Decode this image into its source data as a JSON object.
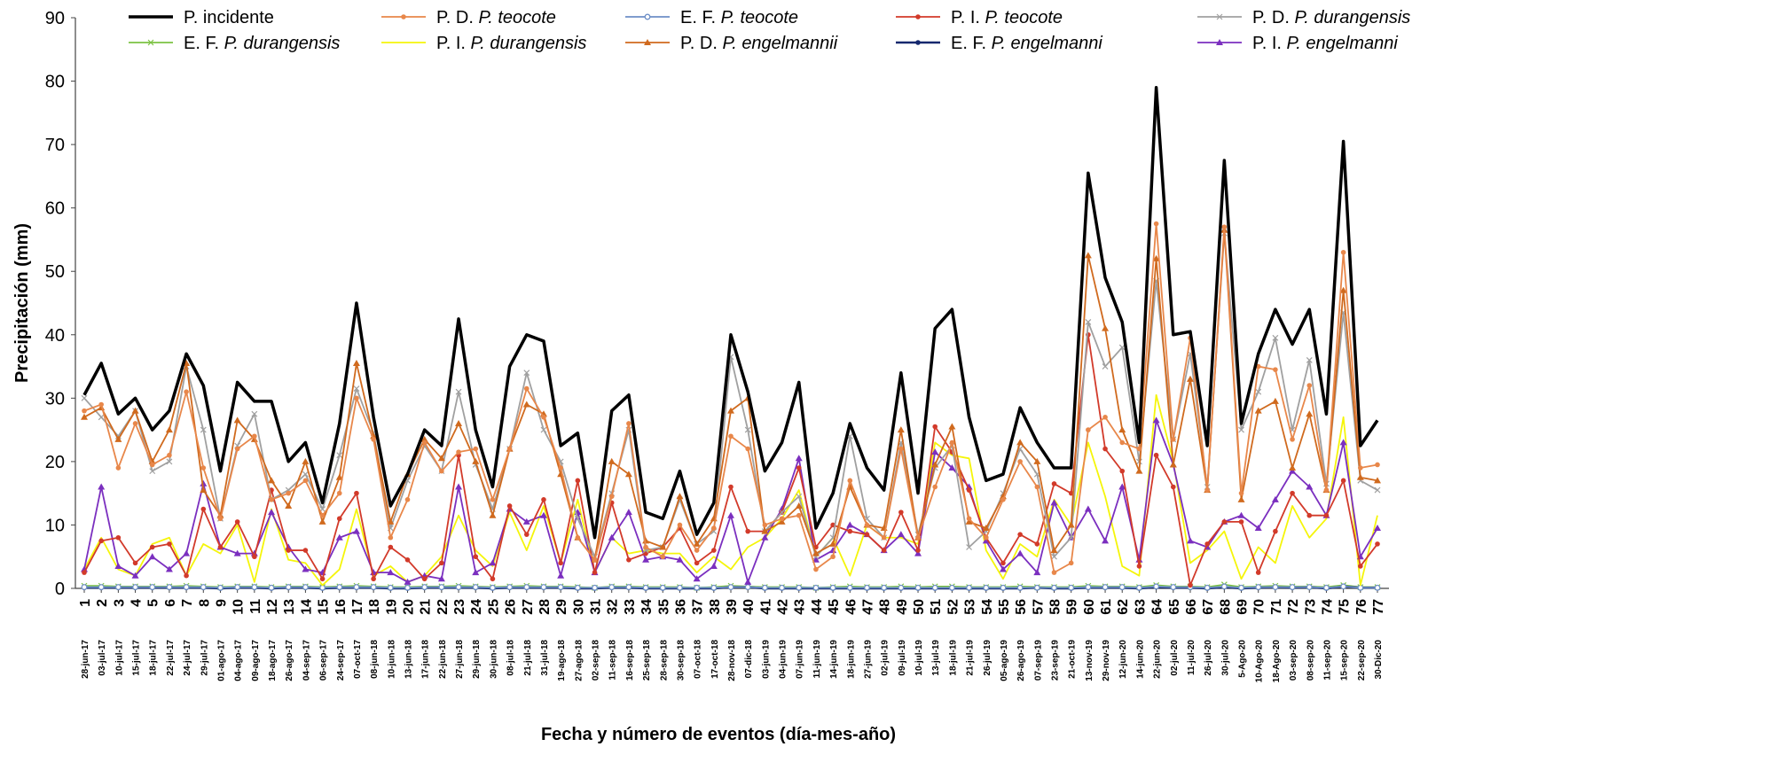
{
  "chart_data": {
    "type": "line",
    "xlabel": "Fecha y número de eventos (día-mes-año)",
    "ylabel": "Precipitación (mm)",
    "ylim": [
      0,
      90
    ],
    "yticks": [
      0,
      10,
      20,
      30,
      40,
      50,
      60,
      70,
      80,
      90
    ],
    "legend_position": "top",
    "grid": false,
    "events": [
      "1",
      "2",
      "3",
      "4",
      "5",
      "6",
      "7",
      "8",
      "9",
      "10",
      "11",
      "12",
      "13",
      "14",
      "15",
      "16",
      "17",
      "18",
      "19",
      "20",
      "21",
      "22",
      "23",
      "24",
      "25",
      "26",
      "27",
      "28",
      "29",
      "30",
      "31",
      "32",
      "33",
      "34",
      "35",
      "36",
      "37",
      "38",
      "39",
      "40",
      "41",
      "42",
      "43",
      "44",
      "45",
      "46",
      "47",
      "48",
      "49",
      "50",
      "51",
      "52",
      "53",
      "54",
      "55",
      "56",
      "57",
      "58",
      "59",
      "60",
      "61",
      "62",
      "63",
      "64",
      "65",
      "66",
      "67",
      "68",
      "69",
      "70",
      "71",
      "72",
      "73",
      "74",
      "75",
      "76",
      "77"
    ],
    "dates": [
      "28-jun-17",
      "03-jul-17",
      "10-jul-17",
      "15-jul-17",
      "18-jul-17",
      "22-jul-17",
      "24-jul-17",
      "29-jul-17",
      "01-ago-17",
      "04-ago-17",
      "09-ago-17",
      "18-ago-17",
      "26-ago-17",
      "04-sep-17",
      "06-sep-17",
      "24-sep-17",
      "07-oct-17",
      "08-jun-18",
      "10-jun-18",
      "13-jun-18",
      "17-jun-18",
      "22-jun-18",
      "27-jun-18",
      "29-jun-18",
      "30-jun-18",
      "08-jul-18",
      "21-jul-18",
      "31-jul-18",
      "19-ago-18",
      "27-ago-18",
      "02-sep-18",
      "11-sep-18",
      "16-sep-18",
      "25-sep-18",
      "28-sep-18",
      "30-sep-18",
      "07-oct-18",
      "17-oct-18",
      "28-nov-18",
      "07-dic-18",
      "03-jun-19",
      "04-jun-19",
      "07-jun-19",
      "11-jun-19",
      "14-jun-19",
      "18-jun-19",
      "27-jun-19",
      "02-jul-19",
      "09-jul-19",
      "10-jul-19",
      "13-jul-19",
      "18-jul-19",
      "21-jul-19",
      "26-jul-19",
      "05-ago-19",
      "26-ago-19",
      "07-sep-19",
      "23-sep-19",
      "21-oct-19",
      "13-nov-19",
      "29-nov-19",
      "12-jun-20",
      "14-jun-20",
      "22-jun-20",
      "02-jul-20",
      "11-jul-20",
      "26-jul-20",
      "30-jul-20",
      "5-Ago-20",
      "10-Ago-20",
      "18-Ago-20",
      "03-sep-20",
      "08-sep-20",
      "11-sep-20",
      "15-sep-20",
      "22-sep-20",
      "30-Dic-20"
    ],
    "series": [
      {
        "prefix": "P. incidente",
        "species": "",
        "color": "#000000",
        "marker": "none",
        "width": 3.5,
        "values": [
          30.5,
          35.5,
          27.5,
          30,
          25,
          28,
          37,
          32,
          18.5,
          32.5,
          29.5,
          29.5,
          20,
          23,
          13.5,
          26,
          45,
          27,
          13,
          18,
          25,
          22.5,
          42.5,
          25,
          16,
          35,
          40,
          39,
          22.5,
          24.5,
          8,
          28,
          30.5,
          12,
          11,
          18.5,
          8.5,
          13.5,
          40,
          31,
          18.5,
          23,
          32.5,
          9.5,
          15,
          26,
          19,
          15.5,
          34,
          15,
          41,
          44,
          27,
          17,
          18,
          28.5,
          23,
          19,
          19,
          65.5,
          49,
          42,
          23,
          79,
          40,
          40.5,
          22.5,
          67.5,
          26,
          37,
          44,
          38.5,
          44,
          27.5,
          70.5,
          22.5,
          26.5
        ]
      },
      {
        "prefix": "P. D. ",
        "species": "P. teocote",
        "color": "#E8874A",
        "marker": "circle",
        "width": 1.8,
        "values": [
          28,
          29,
          19,
          26,
          19.5,
          21,
          31,
          19,
          11,
          22,
          24,
          14,
          15,
          17,
          11.5,
          15,
          30,
          23.5,
          8,
          14,
          23,
          18.5,
          21.5,
          22,
          14,
          22,
          31.5,
          27,
          19,
          8,
          4.5,
          14.5,
          26,
          6.5,
          5,
          10,
          6,
          9.5,
          24,
          22,
          10,
          11,
          11.5,
          3,
          5,
          17,
          10,
          8,
          22,
          8,
          16,
          23,
          11,
          8,
          14,
          20,
          16,
          2.5,
          4,
          25,
          27,
          23,
          22,
          57.5,
          23.5,
          39.5,
          15.5,
          57,
          15,
          35,
          34.5,
          23.5,
          32,
          15.5,
          53,
          19,
          19.5
        ]
      },
      {
        "prefix": "E. F. ",
        "species": "P. teocote",
        "color": "#6E8FC7",
        "marker": "circle-open",
        "width": 1.8,
        "values": [
          0.2,
          0.2,
          0.2,
          0.2,
          0.2,
          0.2,
          0.2,
          0.2,
          0.1,
          0.2,
          0.2,
          0.1,
          0.2,
          0.2,
          0.1,
          0.2,
          0.2,
          0.2,
          0.1,
          0.1,
          0.2,
          0.2,
          0.2,
          0.2,
          0.1,
          0.2,
          0.2,
          0.2,
          0.2,
          0.1,
          0.1,
          0.2,
          0.2,
          0.1,
          0.1,
          0.1,
          0.1,
          0.1,
          0.2,
          0.2,
          0.1,
          0.1,
          0.1,
          0.1,
          0.1,
          0.1,
          0.1,
          0.1,
          0.1,
          0.1,
          0.1,
          0.1,
          0.1,
          0.1,
          0.1,
          0.1,
          0.1,
          0.1,
          0.1,
          0.2,
          0.2,
          0.2,
          0.1,
          0.3,
          0.2,
          0.2,
          0.1,
          0.3,
          0.1,
          0.2,
          0.2,
          0.2,
          0.2,
          0.1,
          0.3,
          0.1,
          0.1
        ]
      },
      {
        "prefix": "P. I. ",
        "species": "P. teocote",
        "color": "#D23A2A",
        "marker": "circle",
        "width": 1.8,
        "values": [
          2.5,
          7.5,
          8,
          4,
          6.5,
          7,
          2,
          12.5,
          6.5,
          10.5,
          5,
          15.5,
          6,
          6,
          1.5,
          11,
          15,
          1.5,
          6.5,
          4.5,
          1.5,
          4,
          21,
          5,
          1.5,
          13,
          8.5,
          14,
          4,
          17,
          2.5,
          13.5,
          4.5,
          5.5,
          6.5,
          9.5,
          4,
          6,
          16,
          9,
          9,
          12,
          19,
          6.5,
          10,
          9,
          8.5,
          6,
          12,
          6,
          25.5,
          21.5,
          15.5,
          8,
          4,
          8.5,
          7,
          16.5,
          15,
          40,
          22,
          18.5,
          3.5,
          21,
          16,
          0.5,
          7,
          10.5,
          10.5,
          2.5,
          9,
          15,
          11.5,
          11.5,
          17,
          3.5,
          7
        ]
      },
      {
        "prefix": "P. D. ",
        "species": "P. durangensis",
        "color": "#A0A0A0",
        "marker": "x",
        "width": 1.8,
        "values": [
          30,
          27,
          24,
          28,
          18.5,
          20,
          35,
          25,
          11,
          22.5,
          27.5,
          14,
          15.5,
          18,
          12.5,
          21,
          31.5,
          24.5,
          9.5,
          17,
          22.5,
          18.5,
          31,
          19.5,
          12.5,
          22,
          34,
          25,
          20,
          11,
          5,
          15,
          25,
          6,
          6.5,
          14,
          7,
          9,
          36.5,
          25,
          9,
          12,
          14.5,
          5,
          8,
          24,
          11,
          8,
          23,
          8.5,
          19,
          22.5,
          6.5,
          9,
          15,
          22,
          18,
          5,
          8,
          42,
          35,
          38,
          20,
          48.5,
          23.5,
          37,
          16,
          56,
          25,
          31,
          39.5,
          25,
          36,
          16.5,
          43.5,
          17,
          15.5
        ]
      },
      {
        "prefix": "E. F. ",
        "species": "P. durangensis",
        "color": "#7CC242",
        "marker": "x",
        "width": 1.8,
        "values": [
          0.4,
          0.4,
          0.3,
          0.3,
          0.3,
          0.3,
          0.4,
          0.3,
          0.2,
          0.3,
          0.3,
          0.2,
          0.3,
          0.3,
          0.2,
          0.3,
          0.4,
          0.3,
          0.2,
          0.2,
          0.3,
          0.3,
          0.4,
          0.3,
          0.2,
          0.3,
          0.4,
          0.3,
          0.3,
          0.2,
          0.1,
          0.3,
          0.3,
          0.2,
          0.2,
          0.2,
          0.1,
          0.2,
          0.4,
          0.3,
          0.2,
          0.2,
          0.2,
          0.1,
          0.2,
          0.3,
          0.2,
          0.2,
          0.3,
          0.2,
          0.3,
          0.3,
          0.2,
          0.2,
          0.2,
          0.3,
          0.2,
          0.2,
          0.2,
          0.4,
          0.3,
          0.3,
          0.2,
          0.5,
          0.3,
          0.3,
          0.2,
          0.6,
          0.2,
          0.3,
          0.4,
          0.3,
          0.3,
          0.2,
          0.5,
          0.2,
          0.2
        ]
      },
      {
        "prefix": "P. I. ",
        "species": "P. durangensis",
        "color": "#F5F50A",
        "marker": "none",
        "width": 1.8,
        "values": [
          3,
          8,
          3,
          2,
          7,
          8,
          2,
          7,
          5.5,
          10,
          1,
          12.5,
          4.5,
          4,
          0.5,
          3,
          12.5,
          2,
          3.5,
          1,
          2,
          5,
          11.5,
          6,
          3.5,
          12,
          6,
          13,
          4,
          14,
          2.5,
          8,
          5.5,
          6,
          5.5,
          5.5,
          2.5,
          5,
          3,
          6.5,
          8,
          11,
          15.5,
          5,
          8,
          2,
          10,
          8,
          8,
          7,
          23,
          21,
          20.5,
          6,
          1.5,
          7,
          5,
          14,
          10,
          23,
          14.5,
          3.5,
          2,
          30.5,
          20,
          4,
          6,
          9,
          1.5,
          6.5,
          4,
          13,
          8,
          11,
          27,
          0.5,
          11.5
        ]
      },
      {
        "prefix": "P. D. ",
        "species": "P. engelmannii",
        "color": "#D06A1E",
        "marker": "triangle",
        "width": 1.8,
        "values": [
          27,
          28.5,
          23.5,
          28,
          20,
          25,
          35.5,
          15.5,
          11.5,
          26.5,
          23.5,
          17,
          13,
          20,
          10.5,
          17.5,
          35.5,
          24,
          10.5,
          18,
          23.5,
          20.5,
          26,
          20,
          11.5,
          22,
          29,
          27.5,
          18,
          8,
          4.5,
          20,
          18,
          7.5,
          6.5,
          14.5,
          7,
          11,
          28,
          30,
          9,
          10.5,
          13,
          5.5,
          7,
          16,
          10,
          9.5,
          25,
          8,
          19.5,
          25.5,
          10.5,
          9.5,
          14.5,
          23,
          20,
          6,
          10,
          52.5,
          41,
          25,
          18.5,
          52,
          19.5,
          33,
          15.5,
          56.5,
          14,
          28,
          29.5,
          19,
          27.5,
          15.5,
          47,
          17.5,
          17
        ]
      },
      {
        "prefix": "E. F. ",
        "species": "P. engelmanni",
        "color": "#14286E",
        "marker": "circle",
        "width": 2.5,
        "values": [
          0.1,
          0.1,
          0.1,
          0.1,
          0.1,
          0.1,
          0.1,
          0.1,
          0,
          0.1,
          0.1,
          0,
          0.1,
          0.1,
          0,
          0.1,
          0.1,
          0.1,
          0,
          0,
          0.1,
          0.1,
          0.1,
          0.1,
          0,
          0.1,
          0.1,
          0.1,
          0.1,
          0,
          0,
          0.1,
          0.1,
          0,
          0,
          0,
          0,
          0,
          0.2,
          0.2,
          0,
          0,
          0,
          0,
          0,
          0,
          0,
          0,
          0,
          0,
          0,
          0,
          0,
          0,
          0,
          0,
          0.1,
          0,
          0,
          0.1,
          0.1,
          0.1,
          0,
          0.2,
          0.1,
          0.1,
          0,
          0.2,
          0,
          0.1,
          0.2,
          0.1,
          0.2,
          0,
          0.3,
          0.1,
          0.1
        ]
      },
      {
        "prefix": "P. I. ",
        "species": "P. engelmanni",
        "color": "#7B2FBF",
        "marker": "triangle",
        "width": 1.8,
        "values": [
          3,
          16,
          3.5,
          2,
          5,
          3,
          5.5,
          16.5,
          6.5,
          5.5,
          5.5,
          12,
          6.5,
          3,
          2.5,
          8,
          9,
          2.5,
          2.5,
          1,
          2,
          1.5,
          16,
          2.5,
          4,
          12.5,
          10.5,
          11.5,
          2,
          12,
          2.5,
          8,
          12,
          4.5,
          5,
          4.5,
          1.5,
          3.5,
          11.5,
          1,
          8,
          12.5,
          20.5,
          4.5,
          6,
          10,
          8.5,
          6,
          8.5,
          5.5,
          21.5,
          19,
          16,
          7.5,
          3,
          5.5,
          2.5,
          13.5,
          8,
          12.5,
          7.5,
          16,
          4.5,
          26.5,
          19.5,
          7.5,
          6.5,
          10.5,
          11.5,
          9.5,
          14,
          18.5,
          16,
          11.5,
          23,
          5,
          9.5
        ]
      }
    ]
  }
}
